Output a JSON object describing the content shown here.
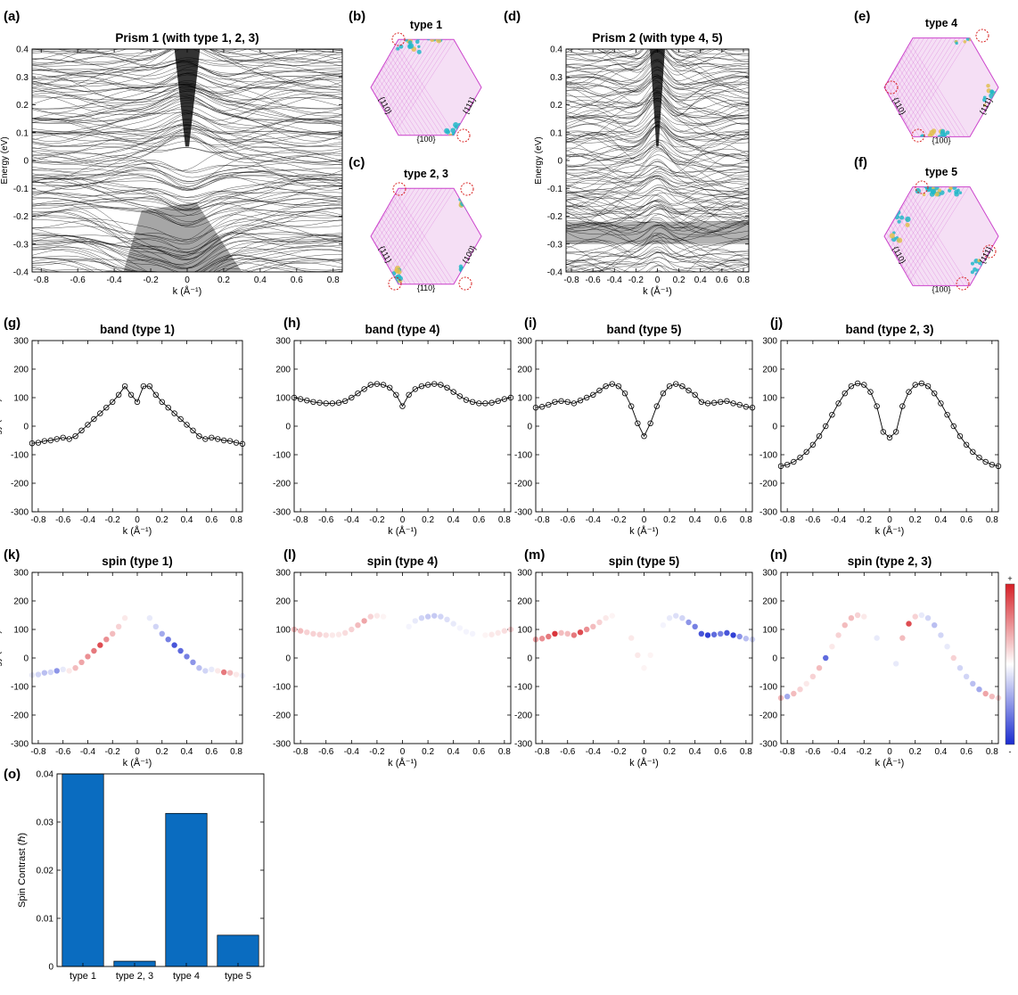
{
  "panel_labels": {
    "a": "(a)",
    "b": "(b)",
    "c": "(c)",
    "d": "(d)",
    "e": "(e)",
    "f": "(f)",
    "g": "(g)",
    "h": "(h)",
    "i": "(i)",
    "j": "(j)",
    "k": "(k)",
    "l": "(l)",
    "m": "(m)",
    "n": "(n)",
    "o": "(o)"
  },
  "colors": {
    "band_line": "#000000",
    "lattice": "#cc44cc",
    "dot_cyan": "#22b8c8",
    "dot_yellow": "#e0c050",
    "marker_ring": "#d82020",
    "spin_pos": "#d61f26",
    "spin_neg": "#1a2bd0",
    "bar": "#0a6cc0"
  },
  "icons": {
    "cb_plus": "+",
    "cb_minus": "-"
  },
  "hexagons": [
    {
      "id": "b",
      "title": "type 1",
      "facets": [
        "{110}",
        "{111}",
        "{100}"
      ]
    },
    {
      "id": "c",
      "title": "type 2, 3",
      "facets": [
        "{111}",
        "{100}",
        "{110}"
      ]
    },
    {
      "id": "e",
      "title": "type 4",
      "facets": [
        "{110}",
        "{111}",
        "{100}"
      ]
    },
    {
      "id": "f",
      "title": "type 5",
      "facets": [
        "{110}",
        "{111}",
        "{100}"
      ]
    }
  ],
  "chart_data": [
    {
      "id": "a",
      "type": "line",
      "title": "Prism 1 (with type 1, 2, 3)",
      "xlabel": "k (Å⁻¹)",
      "ylabel": "Energy (eV)",
      "xlim": [
        -0.85,
        0.85
      ],
      "ylim": [
        -0.4,
        0.4
      ],
      "xticks": [
        "-0.8",
        "-0.6",
        "-0.4",
        "-0.2",
        "0",
        "0.2",
        "0.4",
        "0.6",
        "0.8"
      ],
      "yticks": [
        "-0.4",
        "-0.3",
        "-0.2",
        "-0.1",
        "0",
        "0.1",
        "0.2",
        "0.3",
        "0.4"
      ]
    },
    {
      "id": "d",
      "type": "line",
      "title": "Prism 2 (with type 4, 5)",
      "xlabel": "k (Å⁻¹)",
      "ylabel": "Energy (eV)",
      "xlim": [
        -0.85,
        0.85
      ],
      "ylim": [
        -0.4,
        0.4
      ],
      "xticks": [
        "-0.8",
        "-0.6",
        "-0.4",
        "-0.2",
        "0",
        "0.2",
        "0.4",
        "0.6",
        "0.8"
      ],
      "yticks": [
        "-0.4",
        "-0.3",
        "-0.2",
        "-0.1",
        "0",
        "0.1",
        "0.2",
        "0.3",
        "0.4"
      ]
    },
    {
      "id": "g",
      "type": "line",
      "title": "band (type 1)",
      "xlabel": "k (Å⁻¹)",
      "ylabel": "Energy (meV)",
      "xlim": [
        -0.85,
        0.85
      ],
      "ylim": [
        -300,
        300
      ],
      "xticks": [
        "-0.8",
        "-0.6",
        "-0.4",
        "-0.2",
        "0",
        "0.2",
        "0.4",
        "0.6",
        "0.8"
      ],
      "yticks": [
        "-300",
        "-200",
        "-100",
        "0",
        "100",
        "200",
        "300"
      ],
      "k": [
        -0.85,
        -0.8,
        -0.75,
        -0.7,
        -0.65,
        -0.6,
        -0.55,
        -0.5,
        -0.45,
        -0.4,
        -0.35,
        -0.3,
        -0.25,
        -0.2,
        -0.15,
        -0.1,
        -0.05,
        0,
        0.05,
        0.1,
        0.15,
        0.2,
        0.25,
        0.3,
        0.35,
        0.4,
        0.45,
        0.5,
        0.55,
        0.6,
        0.65,
        0.7,
        0.75,
        0.8,
        0.85
      ],
      "energy": [
        -60,
        -58,
        -52,
        -50,
        -45,
        -40,
        -45,
        -35,
        -15,
        5,
        25,
        45,
        65,
        85,
        110,
        140,
        110,
        85,
        140,
        140,
        110,
        85,
        65,
        45,
        25,
        5,
        -15,
        -35,
        -45,
        -40,
        -45,
        -50,
        -52,
        -58,
        -62
      ]
    },
    {
      "id": "h",
      "type": "line",
      "title": "band (type 4)",
      "xlabel": "k (Å⁻¹)",
      "ylabel": "",
      "xlim": [
        -0.85,
        0.85
      ],
      "ylim": [
        -300,
        300
      ],
      "xticks": [
        "-0.8",
        "-0.6",
        "-0.4",
        "-0.2",
        "0",
        "0.2",
        "0.4",
        "0.6",
        "0.8"
      ],
      "yticks": [
        "-300",
        "-200",
        "-100",
        "0",
        "100",
        "200",
        "300"
      ],
      "k": [
        -0.85,
        -0.8,
        -0.75,
        -0.7,
        -0.65,
        -0.6,
        -0.55,
        -0.5,
        -0.45,
        -0.4,
        -0.35,
        -0.3,
        -0.25,
        -0.2,
        -0.15,
        -0.1,
        -0.05,
        0,
        0.05,
        0.1,
        0.15,
        0.2,
        0.25,
        0.3,
        0.35,
        0.4,
        0.45,
        0.5,
        0.55,
        0.6,
        0.65,
        0.7,
        0.75,
        0.8,
        0.85
      ],
      "energy": [
        100,
        95,
        90,
        85,
        82,
        80,
        80,
        82,
        88,
        100,
        115,
        130,
        145,
        148,
        145,
        135,
        110,
        70,
        110,
        130,
        140,
        145,
        148,
        145,
        135,
        120,
        105,
        92,
        85,
        80,
        80,
        82,
        88,
        95,
        100
      ]
    },
    {
      "id": "i",
      "type": "line",
      "title": "band (type 5)",
      "xlabel": "k (Å⁻¹)",
      "ylabel": "",
      "xlim": [
        -0.85,
        0.85
      ],
      "ylim": [
        -300,
        300
      ],
      "xticks": [
        "-0.8",
        "-0.6",
        "-0.4",
        "-0.2",
        "0",
        "0.2",
        "0.4",
        "0.6",
        "0.8"
      ],
      "yticks": [
        "-300",
        "-200",
        "-100",
        "0",
        "100",
        "200",
        "300"
      ],
      "k": [
        -0.85,
        -0.8,
        -0.75,
        -0.7,
        -0.65,
        -0.6,
        -0.55,
        -0.5,
        -0.45,
        -0.4,
        -0.35,
        -0.3,
        -0.25,
        -0.2,
        -0.15,
        -0.1,
        -0.05,
        0,
        0.05,
        0.1,
        0.15,
        0.2,
        0.25,
        0.3,
        0.35,
        0.4,
        0.45,
        0.5,
        0.55,
        0.6,
        0.65,
        0.7,
        0.75,
        0.8,
        0.85
      ],
      "energy": [
        65,
        68,
        75,
        85,
        88,
        85,
        80,
        90,
        100,
        110,
        125,
        140,
        148,
        140,
        115,
        70,
        10,
        -35,
        10,
        70,
        115,
        140,
        148,
        140,
        125,
        110,
        85,
        80,
        82,
        85,
        88,
        80,
        75,
        68,
        65
      ]
    },
    {
      "id": "j",
      "type": "line",
      "title": "band (type 2, 3)",
      "xlabel": "k (Å⁻¹)",
      "ylabel": "",
      "xlim": [
        -0.85,
        0.85
      ],
      "ylim": [
        -300,
        300
      ],
      "xticks": [
        "-0.8",
        "-0.6",
        "-0.4",
        "-0.2",
        "0",
        "0.2",
        "0.4",
        "0.6",
        "0.8"
      ],
      "yticks": [
        "-300",
        "-200",
        "-100",
        "0",
        "100",
        "200",
        "300"
      ],
      "k": [
        -0.85,
        -0.8,
        -0.75,
        -0.7,
        -0.65,
        -0.6,
        -0.55,
        -0.5,
        -0.45,
        -0.4,
        -0.35,
        -0.3,
        -0.25,
        -0.2,
        -0.15,
        -0.1,
        -0.05,
        0,
        0.05,
        0.1,
        0.15,
        0.2,
        0.25,
        0.3,
        0.35,
        0.4,
        0.45,
        0.5,
        0.55,
        0.6,
        0.65,
        0.7,
        0.75,
        0.8,
        0.85
      ],
      "energy": [
        -140,
        -135,
        -125,
        -110,
        -90,
        -65,
        -35,
        0,
        40,
        80,
        115,
        140,
        150,
        145,
        120,
        70,
        -20,
        -40,
        -20,
        70,
        120,
        145,
        150,
        140,
        115,
        80,
        40,
        0,
        -35,
        -65,
        -90,
        -110,
        -125,
        -135,
        -140
      ]
    },
    {
      "id": "k",
      "type": "scatter",
      "title": "spin (type 1)",
      "xlabel": "k (Å⁻¹)",
      "ylabel": "Energy (meV)",
      "xlim": [
        -0.85,
        0.85
      ],
      "ylim": [
        -300,
        300
      ],
      "xticks": [
        "-0.8",
        "-0.6",
        "-0.4",
        "-0.2",
        "0",
        "0.2",
        "0.4",
        "0.6",
        "0.8"
      ],
      "yticks": [
        "-300",
        "-200",
        "-100",
        "0",
        "100",
        "200",
        "300"
      ],
      "colorbar": {
        "range": [
          -1,
          1
        ],
        "top": "+",
        "bottom": "-"
      },
      "spin": [
        -0.1,
        -0.2,
        -0.3,
        -0.2,
        -0.5,
        -0.1,
        0.1,
        0.3,
        0.4,
        0.5,
        0.6,
        0.8,
        0.5,
        0.3,
        0.2,
        0.1,
        0,
        0,
        0,
        -0.1,
        -0.2,
        -0.4,
        -0.6,
        -0.8,
        -0.7,
        -0.6,
        -0.5,
        -0.3,
        -0.2,
        -0.1,
        0.1,
        0.6,
        0.3,
        0.1,
        -0.1
      ]
    },
    {
      "id": "l",
      "type": "scatter",
      "title": "spin (type 4)",
      "xlabel": "k (Å⁻¹)",
      "ylabel": "",
      "xlim": [
        -0.85,
        0.85
      ],
      "ylim": [
        -300,
        300
      ],
      "xticks": [
        "-0.8",
        "-0.6",
        "-0.4",
        "-0.2",
        "0",
        "0.2",
        "0.4",
        "0.6",
        "0.8"
      ],
      "yticks": [
        "-300",
        "-200",
        "-100",
        "0",
        "100",
        "200",
        "300"
      ],
      "spin": [
        0.3,
        0.3,
        0.2,
        0.2,
        0.2,
        0.15,
        0.1,
        0.1,
        0.15,
        0.2,
        0.3,
        0.4,
        0.2,
        0.1,
        0.05,
        0,
        0,
        0,
        -0.05,
        -0.1,
        -0.2,
        -0.25,
        -0.25,
        -0.2,
        -0.15,
        -0.1,
        -0.05,
        -0.05,
        -0.05,
        0,
        0.05,
        0.1,
        0.1,
        0.15,
        0.2
      ]
    },
    {
      "id": "m",
      "type": "scatter",
      "title": "spin (type 5)",
      "xlabel": "k (Å⁻¹)",
      "ylabel": "",
      "xlim": [
        -0.85,
        0.85
      ],
      "ylim": [
        -300,
        300
      ],
      "xticks": [
        "-0.8",
        "-0.6",
        "-0.4",
        "-0.2",
        "0",
        "0.2",
        "0.4",
        "0.6",
        "0.8"
      ],
      "yticks": [
        "-300",
        "-200",
        "-100",
        "0",
        "100",
        "200",
        "300"
      ],
      "spin": [
        0.4,
        0.5,
        0.6,
        0.9,
        0.3,
        0.3,
        0.6,
        0.8,
        0.5,
        0.3,
        0.2,
        0.1,
        0.05,
        0,
        0,
        0.1,
        0.1,
        0.05,
        0.05,
        0,
        -0.05,
        -0.1,
        -0.15,
        -0.2,
        -0.5,
        -0.6,
        -0.8,
        -0.9,
        -0.7,
        -0.6,
        -0.8,
        -0.9,
        -0.5,
        -0.3,
        -0.2
      ]
    },
    {
      "id": "n",
      "type": "scatter",
      "title": "spin (type 2, 3)",
      "xlabel": "k (Å⁻¹)",
      "ylabel": "",
      "xlim": [
        -0.85,
        0.85
      ],
      "ylim": [
        -300,
        300
      ],
      "xticks": [
        "-0.8",
        "-0.6",
        "-0.4",
        "-0.2",
        "0",
        "0.2",
        "0.4",
        "0.6",
        "0.8"
      ],
      "yticks": [
        "-300",
        "-200",
        "-100",
        "0",
        "100",
        "200",
        "300"
      ],
      "spin": [
        0.3,
        -0.4,
        0.3,
        0.2,
        0.1,
        0.2,
        0.3,
        -0.7,
        0.1,
        0.2,
        0.3,
        0.3,
        0.2,
        0.1,
        0,
        -0.1,
        0,
        0,
        -0.1,
        0.3,
        0.8,
        0.2,
        -0.1,
        -0.2,
        -0.3,
        -0.2,
        -0.1,
        0.2,
        -0.2,
        -0.2,
        -0.3,
        -0.4,
        0.4,
        0.3,
        0.2
      ]
    },
    {
      "id": "o",
      "type": "bar",
      "title": "",
      "xlabel": "",
      "ylabel": "Spin Contrast (ℏ)",
      "ylim": [
        0,
        0.04
      ],
      "yticks": [
        "0",
        "0.01",
        "0.02",
        "0.03",
        "0.04"
      ],
      "categories": [
        "type 1",
        "type 2, 3",
        "type 4",
        "type 5"
      ],
      "values": [
        0.04,
        0.0011,
        0.0318,
        0.0065
      ]
    }
  ]
}
